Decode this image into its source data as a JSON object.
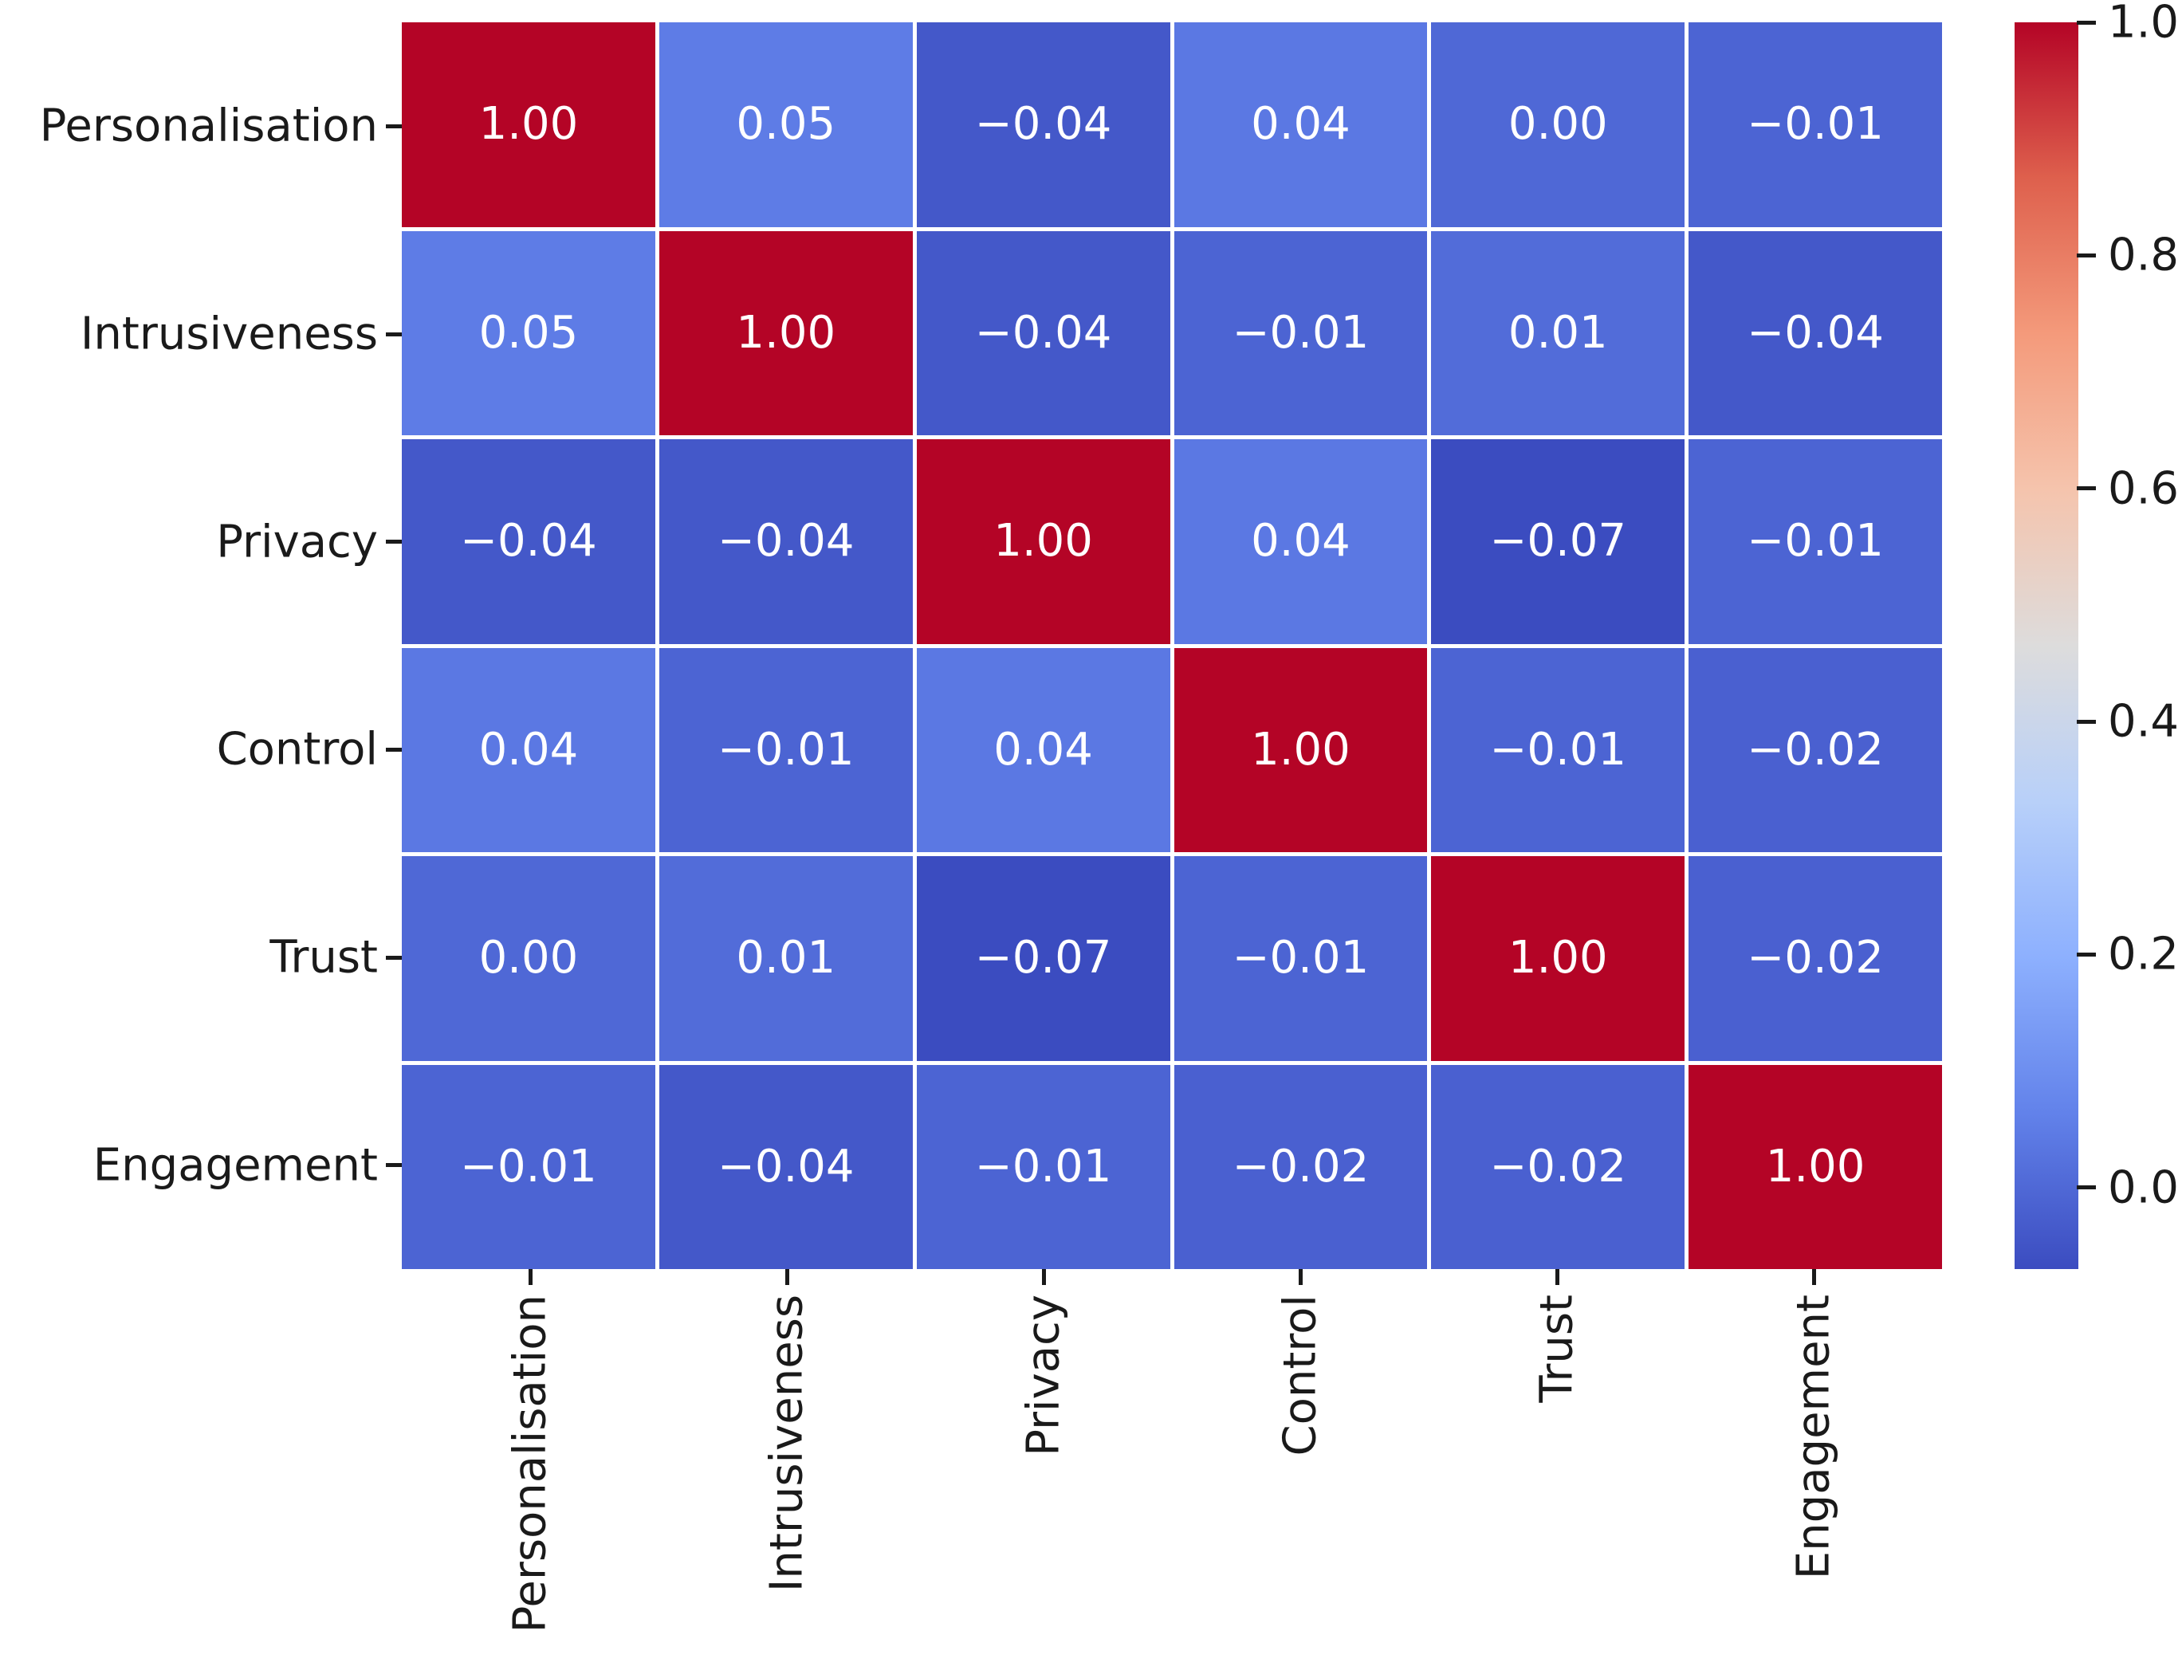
{
  "chart_data": {
    "type": "heatmap",
    "title": "",
    "xlabel": "",
    "ylabel": "",
    "categories": [
      "Personalisation",
      "Intrusiveness",
      "Privacy",
      "Control",
      "Trust",
      "Engagement"
    ],
    "matrix": [
      [
        1.0,
        0.05,
        -0.04,
        0.04,
        0.0,
        -0.01
      ],
      [
        0.05,
        1.0,
        -0.04,
        -0.01,
        0.01,
        -0.04
      ],
      [
        -0.04,
        -0.04,
        1.0,
        0.04,
        -0.07,
        -0.01
      ],
      [
        0.04,
        -0.01,
        0.04,
        1.0,
        -0.01,
        -0.02
      ],
      [
        0.0,
        0.01,
        -0.07,
        -0.01,
        1.0,
        -0.02
      ],
      [
        -0.01,
        -0.04,
        -0.01,
        -0.02,
        -0.02,
        1.0
      ]
    ],
    "cell_labels": [
      [
        "1.00",
        "0.05",
        "−0.04",
        "0.04",
        "0.00",
        "−0.01"
      ],
      [
        "0.05",
        "1.00",
        "−0.04",
        "−0.01",
        "0.01",
        "−0.04"
      ],
      [
        "−0.04",
        "−0.04",
        "1.00",
        "0.04",
        "−0.07",
        "−0.01"
      ],
      [
        "0.04",
        "−0.01",
        "0.04",
        "1.00",
        "−0.01",
        "−0.02"
      ],
      [
        "0.00",
        "0.01",
        "−0.07",
        "−0.01",
        "1.00",
        "−0.02"
      ],
      [
        "−0.01",
        "−0.04",
        "−0.01",
        "−0.02",
        "−0.02",
        "1.00"
      ]
    ],
    "vmin": -0.07,
    "vmax": 1.0,
    "colormap": {
      "name": "coolwarm",
      "stops": [
        [
          0.0,
          "#3b4cc0"
        ],
        [
          0.125,
          "#6282ea"
        ],
        [
          0.25,
          "#8db0fe"
        ],
        [
          0.375,
          "#b8d0f9"
        ],
        [
          0.5,
          "#dddcdc"
        ],
        [
          0.625,
          "#f5c4ad"
        ],
        [
          0.75,
          "#f49a7b"
        ],
        [
          0.875,
          "#de604d"
        ],
        [
          1.0,
          "#b40426"
        ]
      ]
    },
    "colorbar_ticks": [
      {
        "value": 1.0,
        "label": "1.0"
      },
      {
        "value": 0.8,
        "label": "0.8"
      },
      {
        "value": 0.6,
        "label": "0.6"
      },
      {
        "value": 0.4,
        "label": "0.4"
      },
      {
        "value": 0.2,
        "label": "0.2"
      },
      {
        "value": 0.0,
        "label": "0.0"
      }
    ],
    "legend_position": "right-colorbar",
    "grid": "white-lines",
    "annotation_text_color": "#ffffff",
    "axis_text_color": "#1a1a1a",
    "diagonal_color": "#b40426",
    "background_color": "#ffffff"
  }
}
